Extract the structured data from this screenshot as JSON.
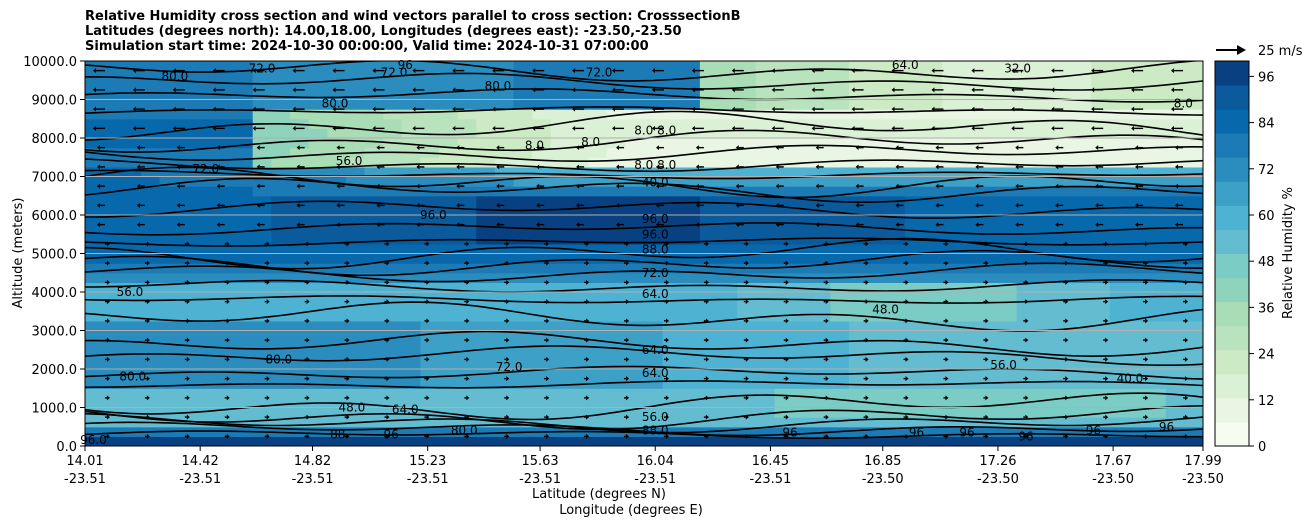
{
  "title_lines": [
    "Relative Humidity cross section and wind vectors parallel to cross section: CrosssectionB",
    "Latitudes (degrees north): 14.00,18.00, Longitudes (degrees east): -23.50,-23.50",
    "Simulation start time: 2024-10-30 00:00:00, Valid time: 2024-10-31 07:00:00"
  ],
  "chart_data": {
    "type": "heatmap",
    "y_axis": {
      "label": "Altitude (meters)",
      "range": [
        0,
        10000
      ],
      "ticks": [
        "0.0",
        "1000.0",
        "2000.0",
        "3000.0",
        "4000.0",
        "5000.0",
        "6000.0",
        "7000.0",
        "8000.0",
        "9000.0",
        "10000.0"
      ]
    },
    "x_axis": {
      "label_lat": "Latitude (degrees N)",
      "label_lon": "Longitude (degrees E)",
      "range": [
        14.01,
        17.99
      ],
      "ticks": [
        {
          "lat": "14.01",
          "lon": "-23.51"
        },
        {
          "lat": "14.42",
          "lon": "-23.51"
        },
        {
          "lat": "14.82",
          "lon": "-23.51"
        },
        {
          "lat": "15.23",
          "lon": "-23.51"
        },
        {
          "lat": "15.63",
          "lon": "-23.51"
        },
        {
          "lat": "16.04",
          "lon": "-23.51"
        },
        {
          "lat": "16.45",
          "lon": "-23.51"
        },
        {
          "lat": "16.85",
          "lon": "-23.50"
        },
        {
          "lat": "17.26",
          "lon": "-23.50"
        },
        {
          "lat": "17.67",
          "lon": "-23.50"
        },
        {
          "lat": "17.99",
          "lon": "-23.50"
        }
      ]
    },
    "colorbar": {
      "label": "Relative Humidity %",
      "range": [
        0,
        100
      ],
      "ticks": [
        "0",
        "12",
        "24",
        "36",
        "48",
        "60",
        "72",
        "84",
        "96"
      ],
      "colors": [
        "#f7fcf0",
        "#e9f6e4",
        "#dbf1d6",
        "#ccebc5",
        "#b9e3bd",
        "#a8ddb5",
        "#8ed3bc",
        "#7bccc4",
        "#63bcd0",
        "#4eb3d3",
        "#3ca0c7",
        "#2b8cbe",
        "#1c7bb5",
        "#0868ac",
        "#0a5a9c",
        "#084081"
      ]
    },
    "wind_reference": {
      "label": "25 m/s",
      "speed": 25
    },
    "grid": "horizontal",
    "contour_labels": [
      {
        "text": "96.0",
        "x": 14.04,
        "y": 150
      },
      {
        "text": "80.0",
        "x": 14.18,
        "y": 1800
      },
      {
        "text": "56.0",
        "x": 14.17,
        "y": 4000
      },
      {
        "text": "72.0",
        "x": 14.44,
        "y": 7200
      },
      {
        "text": "80.0",
        "x": 14.33,
        "y": 9600
      },
      {
        "text": "72.0",
        "x": 14.64,
        "y": 9800
      },
      {
        "text": "80.0",
        "x": 14.7,
        "y": 2250
      },
      {
        "text": "48.0",
        "x": 14.96,
        "y": 1000
      },
      {
        "text": "88",
        "x": 14.91,
        "y": 300
      },
      {
        "text": "64.0",
        "x": 15.15,
        "y": 950
      },
      {
        "text": "80.0",
        "x": 14.9,
        "y": 8900
      },
      {
        "text": "72.0",
        "x": 15.11,
        "y": 9700
      },
      {
        "text": "80.0",
        "x": 15.48,
        "y": 9350
      },
      {
        "text": "56.0",
        "x": 14.95,
        "y": 7400
      },
      {
        "text": "96.0",
        "x": 15.25,
        "y": 6000
      },
      {
        "text": "96",
        "x": 15.1,
        "y": 300
      },
      {
        "text": "80.0",
        "x": 15.36,
        "y": 400
      },
      {
        "text": "72.0",
        "x": 15.52,
        "y": 2050
      },
      {
        "text": "8.0",
        "x": 15.61,
        "y": 7800
      },
      {
        "text": "8.0",
        "x": 15.81,
        "y": 7900
      },
      {
        "text": "72.0",
        "x": 15.84,
        "y": 9700
      },
      {
        "text": "8.0 8.0",
        "x": 16.04,
        "y": 8200
      },
      {
        "text": "8.0 8.0",
        "x": 16.04,
        "y": 7300
      },
      {
        "text": "40.0",
        "x": 16.04,
        "y": 6850
      },
      {
        "text": "96.0",
        "x": 16.04,
        "y": 5900
      },
      {
        "text": "96.0",
        "x": 16.04,
        "y": 5500
      },
      {
        "text": "88.0",
        "x": 16.04,
        "y": 5100
      },
      {
        "text": "72.0",
        "x": 16.04,
        "y": 4500
      },
      {
        "text": "64.0",
        "x": 16.04,
        "y": 3950
      },
      {
        "text": "64.0",
        "x": 16.04,
        "y": 2500
      },
      {
        "text": "64.0",
        "x": 16.04,
        "y": 1900
      },
      {
        "text": "56.0",
        "x": 16.04,
        "y": 750
      },
      {
        "text": "88.0",
        "x": 16.04,
        "y": 400
      },
      {
        "text": "96",
        "x": 16.52,
        "y": 350
      },
      {
        "text": "48.0",
        "x": 16.86,
        "y": 3550
      },
      {
        "text": "96",
        "x": 16.97,
        "y": 350
      },
      {
        "text": "56.0",
        "x": 17.28,
        "y": 2100
      },
      {
        "text": "96",
        "x": 17.15,
        "y": 350
      },
      {
        "text": "96",
        "x": 17.36,
        "y": 250
      },
      {
        "text": "96",
        "x": 17.6,
        "y": 400
      },
      {
        "text": "40.0",
        "x": 17.73,
        "y": 1750
      },
      {
        "text": "96",
        "x": 17.86,
        "y": 500
      },
      {
        "text": "8.0",
        "x": 17.92,
        "y": 8900
      },
      {
        "text": "32.0",
        "x": 17.33,
        "y": 9800
      },
      {
        "text": "96",
        "x": 15.15,
        "y": 9900
      },
      {
        "text": "64.0",
        "x": 16.93,
        "y": 9900
      }
    ]
  }
}
